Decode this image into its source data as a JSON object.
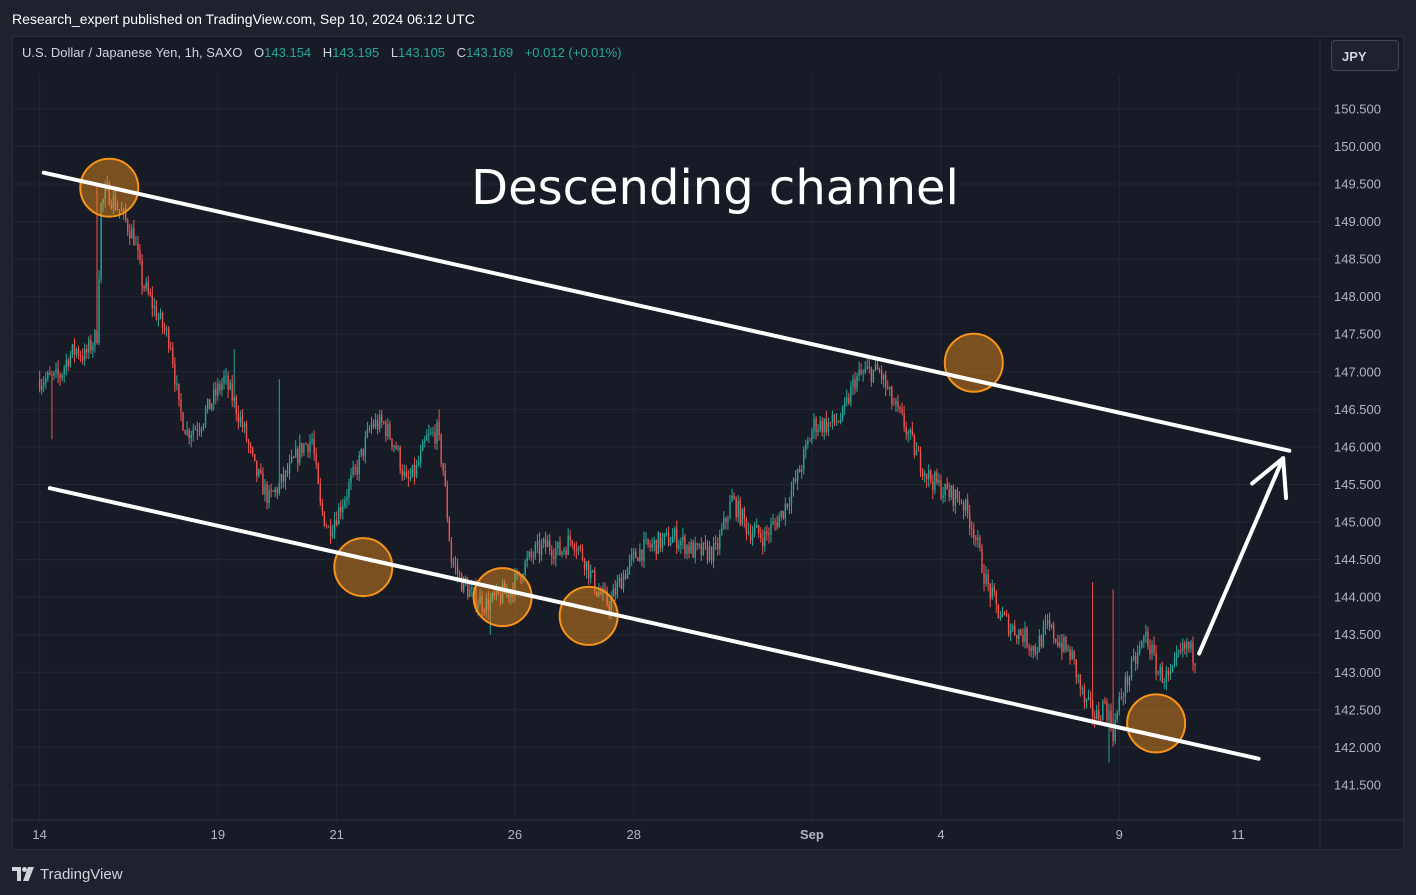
{
  "header": {
    "published_text": "Research_expert published on TradingView.com, Sep 10, 2024 06:12 UTC"
  },
  "legend": {
    "symbol_text": "U.S. Dollar / Japanese Yen, 1h, SAXO",
    "open_label": "O",
    "open_value": "143.154",
    "high_label": "H",
    "high_value": "143.195",
    "low_label": "L",
    "low_value": "143.105",
    "close_label": "C",
    "close_value": "143.169",
    "change_value": "+0.012 (+0.01%)"
  },
  "currency_button": {
    "label": "JPY"
  },
  "annotation": {
    "text": "Descending channel"
  },
  "footer": {
    "brand": "TradingView"
  },
  "colors": {
    "background": "#171b26",
    "up": "#26a69a",
    "down": "#ef5350",
    "channel": "#ffffff",
    "circle": "#f7931a",
    "grid": "#232733"
  },
  "chart_data": {
    "type": "candlestick",
    "title": "",
    "xlabel": "",
    "ylabel": "",
    "price_axis_ticks": [
      "150.500",
      "150.000",
      "149.500",
      "149.000",
      "148.500",
      "148.000",
      "147.500",
      "147.000",
      "146.500",
      "146.000",
      "145.500",
      "145.000",
      "144.500",
      "144.000",
      "143.500",
      "143.000",
      "142.500",
      "142.000",
      "141.500"
    ],
    "ylim": [
      141.3,
      150.95
    ],
    "time_axis_ticks": [
      {
        "label": "14",
        "x_index": 0
      },
      {
        "label": "19",
        "x_index": 87
      },
      {
        "label": "21",
        "x_index": 145
      },
      {
        "label": "26",
        "x_index": 232
      },
      {
        "label": "28",
        "x_index": 290
      },
      {
        "label": "Sep",
        "x_index": 377,
        "bold": true
      },
      {
        "label": "4",
        "x_index": 440
      },
      {
        "label": "9",
        "x_index": 527
      },
      {
        "label": "11",
        "x_index": 585
      }
    ],
    "xlim": [
      -13,
      625
    ],
    "price_anchors": [
      {
        "i": 0,
        "p": 146.9
      },
      {
        "i": 6,
        "p": 146.9
      },
      {
        "i": 10,
        "p": 146.95
      },
      {
        "i": 14,
        "p": 147.2
      },
      {
        "i": 18,
        "p": 147.3
      },
      {
        "i": 22,
        "p": 147.2
      },
      {
        "i": 26,
        "p": 147.4
      },
      {
        "i": 28,
        "p": 147.5
      },
      {
        "i": 30,
        "p": 149.2
      },
      {
        "i": 33,
        "p": 149.4
      },
      {
        "i": 38,
        "p": 149.2
      },
      {
        "i": 42,
        "p": 149.0
      },
      {
        "i": 46,
        "p": 148.8
      },
      {
        "i": 50,
        "p": 148.2
      },
      {
        "i": 55,
        "p": 147.9
      },
      {
        "i": 60,
        "p": 147.6
      },
      {
        "i": 64,
        "p": 147.4
      },
      {
        "i": 68,
        "p": 146.5
      },
      {
        "i": 72,
        "p": 146.2
      },
      {
        "i": 78,
        "p": 146.3
      },
      {
        "i": 84,
        "p": 146.6
      },
      {
        "i": 90,
        "p": 146.9
      },
      {
        "i": 95,
        "p": 146.6
      },
      {
        "i": 100,
        "p": 146.2
      },
      {
        "i": 105,
        "p": 145.7
      },
      {
        "i": 112,
        "p": 145.3
      },
      {
        "i": 120,
        "p": 145.6
      },
      {
        "i": 128,
        "p": 146.0
      },
      {
        "i": 133,
        "p": 146.1
      },
      {
        "i": 137,
        "p": 145.2
      },
      {
        "i": 141,
        "p": 144.9
      },
      {
        "i": 145,
        "p": 145.1
      },
      {
        "i": 150,
        "p": 145.4
      },
      {
        "i": 156,
        "p": 145.8
      },
      {
        "i": 162,
        "p": 146.3
      },
      {
        "i": 168,
        "p": 146.3
      },
      {
        "i": 174,
        "p": 146.0
      },
      {
        "i": 179,
        "p": 145.5
      },
      {
        "i": 184,
        "p": 145.7
      },
      {
        "i": 189,
        "p": 146.1
      },
      {
        "i": 194,
        "p": 146.2
      },
      {
        "i": 197,
        "p": 145.7
      },
      {
        "i": 201,
        "p": 144.5
      },
      {
        "i": 206,
        "p": 144.2
      },
      {
        "i": 212,
        "p": 144.0
      },
      {
        "i": 218,
        "p": 143.9
      },
      {
        "i": 224,
        "p": 144.0
      },
      {
        "i": 230,
        "p": 144.1
      },
      {
        "i": 236,
        "p": 144.4
      },
      {
        "i": 242,
        "p": 144.6
      },
      {
        "i": 248,
        "p": 144.7
      },
      {
        "i": 254,
        "p": 144.6
      },
      {
        "i": 260,
        "p": 144.8
      },
      {
        "i": 266,
        "p": 144.5
      },
      {
        "i": 272,
        "p": 144.1
      },
      {
        "i": 278,
        "p": 143.9
      },
      {
        "i": 285,
        "p": 144.3
      },
      {
        "i": 292,
        "p": 144.6
      },
      {
        "i": 300,
        "p": 144.7
      },
      {
        "i": 310,
        "p": 144.8
      },
      {
        "i": 320,
        "p": 144.6
      },
      {
        "i": 330,
        "p": 144.6
      },
      {
        "i": 338,
        "p": 145.3
      },
      {
        "i": 346,
        "p": 144.9
      },
      {
        "i": 354,
        "p": 144.8
      },
      {
        "i": 362,
        "p": 145.1
      },
      {
        "i": 370,
        "p": 145.6
      },
      {
        "i": 378,
        "p": 146.3
      },
      {
        "i": 386,
        "p": 146.3
      },
      {
        "i": 392,
        "p": 146.4
      },
      {
        "i": 398,
        "p": 146.9
      },
      {
        "i": 404,
        "p": 147.0
      },
      {
        "i": 410,
        "p": 147.0
      },
      {
        "i": 416,
        "p": 146.6
      },
      {
        "i": 422,
        "p": 146.3
      },
      {
        "i": 428,
        "p": 145.9
      },
      {
        "i": 434,
        "p": 145.6
      },
      {
        "i": 442,
        "p": 145.4
      },
      {
        "i": 450,
        "p": 145.3
      },
      {
        "i": 456,
        "p": 144.9
      },
      {
        "i": 462,
        "p": 144.2
      },
      {
        "i": 468,
        "p": 143.8
      },
      {
        "i": 474,
        "p": 143.6
      },
      {
        "i": 480,
        "p": 143.5
      },
      {
        "i": 486,
        "p": 143.3
      },
      {
        "i": 492,
        "p": 143.6
      },
      {
        "i": 498,
        "p": 143.4
      },
      {
        "i": 504,
        "p": 143.2
      },
      {
        "i": 510,
        "p": 142.6
      },
      {
        "i": 516,
        "p": 142.4
      },
      {
        "i": 520,
        "p": 142.6
      },
      {
        "i": 524,
        "p": 142.2
      },
      {
        "i": 528,
        "p": 142.7
      },
      {
        "i": 534,
        "p": 143.1
      },
      {
        "i": 540,
        "p": 143.5
      },
      {
        "i": 546,
        "p": 143.0
      },
      {
        "i": 552,
        "p": 142.9
      },
      {
        "i": 556,
        "p": 143.2
      },
      {
        "i": 560,
        "p": 143.35
      },
      {
        "i": 564,
        "p": 143.2
      }
    ],
    "spikes": [
      {
        "i": 28,
        "p": 149.5,
        "dir": "up"
      },
      {
        "i": 117,
        "p": 146.9,
        "dir": "up"
      },
      {
        "i": 195,
        "p": 146.5,
        "dir": "up"
      },
      {
        "i": 220,
        "p": 143.5,
        "dir": "down"
      },
      {
        "i": 405,
        "p": 147.2,
        "dir": "up"
      },
      {
        "i": 514,
        "p": 144.2,
        "dir": "up"
      },
      {
        "i": 524,
        "p": 144.1,
        "dir": "up"
      },
      {
        "i": 522,
        "p": 141.8,
        "dir": "down"
      },
      {
        "i": 6,
        "p": 146.1,
        "dir": "down"
      },
      {
        "i": 95,
        "p": 147.3,
        "dir": "up"
      }
    ],
    "channel": {
      "upper": [
        {
          "i": 2,
          "p": 149.65
        },
        {
          "i": 610,
          "p": 145.95
        }
      ],
      "lower": [
        {
          "i": 5,
          "p": 145.45
        },
        {
          "i": 595,
          "p": 141.85
        }
      ]
    },
    "touch_points": [
      {
        "i": 34,
        "p": 149.45
      },
      {
        "i": 456,
        "p": 147.12
      },
      {
        "i": 158,
        "p": 144.4
      },
      {
        "i": 226,
        "p": 144.0
      },
      {
        "i": 268,
        "p": 143.75
      },
      {
        "i": 545,
        "p": 142.32
      }
    ],
    "arrow": {
      "from": {
        "i": 566,
        "p": 143.25
      },
      "to": {
        "i": 607,
        "p": 145.85
      }
    }
  }
}
